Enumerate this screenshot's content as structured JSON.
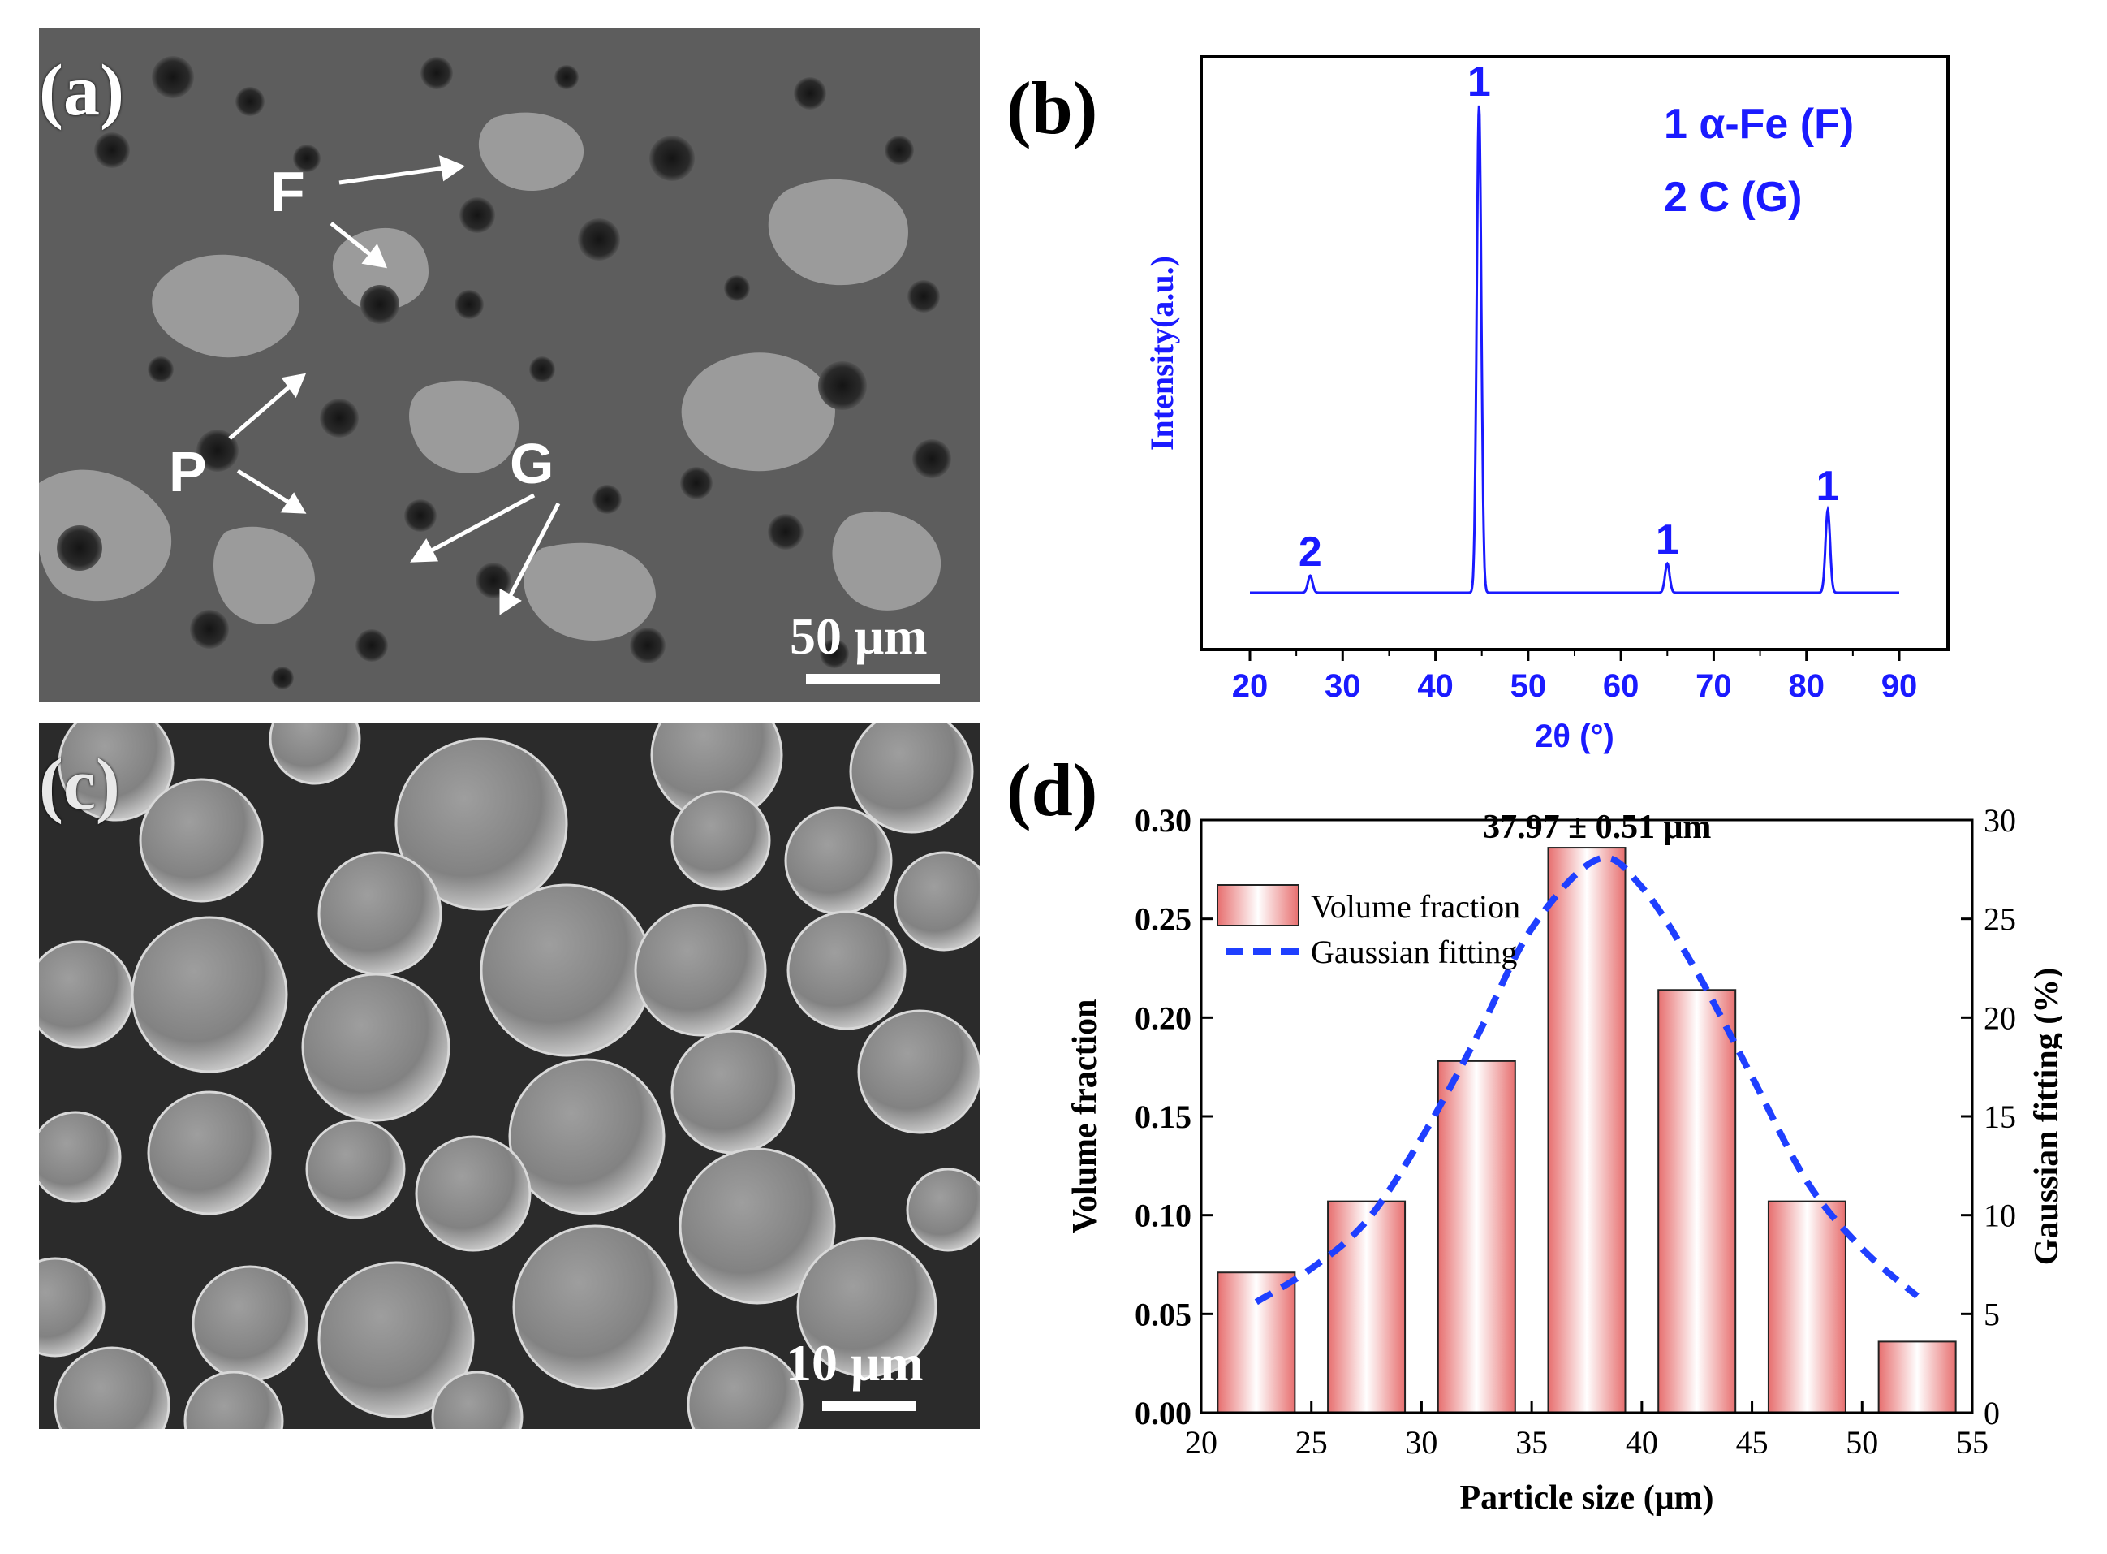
{
  "panels": {
    "a": {
      "label": "(a)",
      "annotations": [
        "F",
        "P",
        "G"
      ],
      "scalebar": "50 μm"
    },
    "b": {
      "label": "(b)"
    },
    "c": {
      "label": "(c)",
      "scalebar": "10 μm"
    },
    "d": {
      "label": "(d)"
    }
  },
  "chart_data": [
    {
      "type": "line",
      "panel": "b",
      "xlabel": "2θ (°)",
      "ylabel": "Intensity(a.u.)",
      "xlim": [
        20,
        90
      ],
      "xticks": [
        20,
        30,
        40,
        50,
        60,
        70,
        80,
        90
      ],
      "y_tick_labels_shown": false,
      "peaks": [
        {
          "x": 26.5,
          "y": 0.035,
          "label": "2"
        },
        {
          "x": 44.7,
          "y": 1.0,
          "label": "1"
        },
        {
          "x": 65.0,
          "y": 0.06,
          "label": "1"
        },
        {
          "x": 82.3,
          "y": 0.17,
          "label": "1"
        }
      ],
      "legend": [
        "1 α-Fe (F)",
        "2 C (G)"
      ],
      "color": "#1a1aff"
    },
    {
      "type": "bar",
      "panel": "d",
      "xlabel": "Particle size (μm)",
      "ylabel": "Volume fraction",
      "ylabel_right": "Gaussian fitting  (%)",
      "annotation": "37.97 ± 0.51 μm",
      "xlim": [
        20,
        55
      ],
      "xticks": [
        20,
        25,
        30,
        35,
        40,
        45,
        50,
        55
      ],
      "ylim": [
        0,
        0.3
      ],
      "yticks": [
        "0.00",
        "0.05",
        "0.10",
        "0.15",
        "0.20",
        "0.25",
        "0.30"
      ],
      "ylim_right": [
        0,
        30
      ],
      "yticks_right": [
        0,
        5,
        10,
        15,
        20,
        25,
        30
      ],
      "bin_width": 3.5,
      "categories": [
        22.5,
        27.5,
        32.5,
        37.5,
        42.5,
        47.5,
        52.5
      ],
      "series": [
        {
          "name": "Volume fraction",
          "type": "bar",
          "values": [
            0.071,
            0.107,
            0.178,
            0.286,
            0.214,
            0.107,
            0.036
          ]
        },
        {
          "name": "Gaussian fitting",
          "type": "line",
          "style": "dashed",
          "axis": "right",
          "x": [
            22.5,
            25,
            27.5,
            30,
            32.5,
            35,
            37.97,
            40,
            42.5,
            45,
            47.5,
            50,
            52.5
          ],
          "values": [
            5.6,
            7.3,
            9.7,
            13.9,
            19.0,
            24.5,
            28.0,
            26.6,
            22.3,
            17.0,
            11.7,
            8.3,
            5.9
          ]
        }
      ],
      "bar_color": "#e76f6f",
      "line_color": "#1f3fff"
    }
  ]
}
